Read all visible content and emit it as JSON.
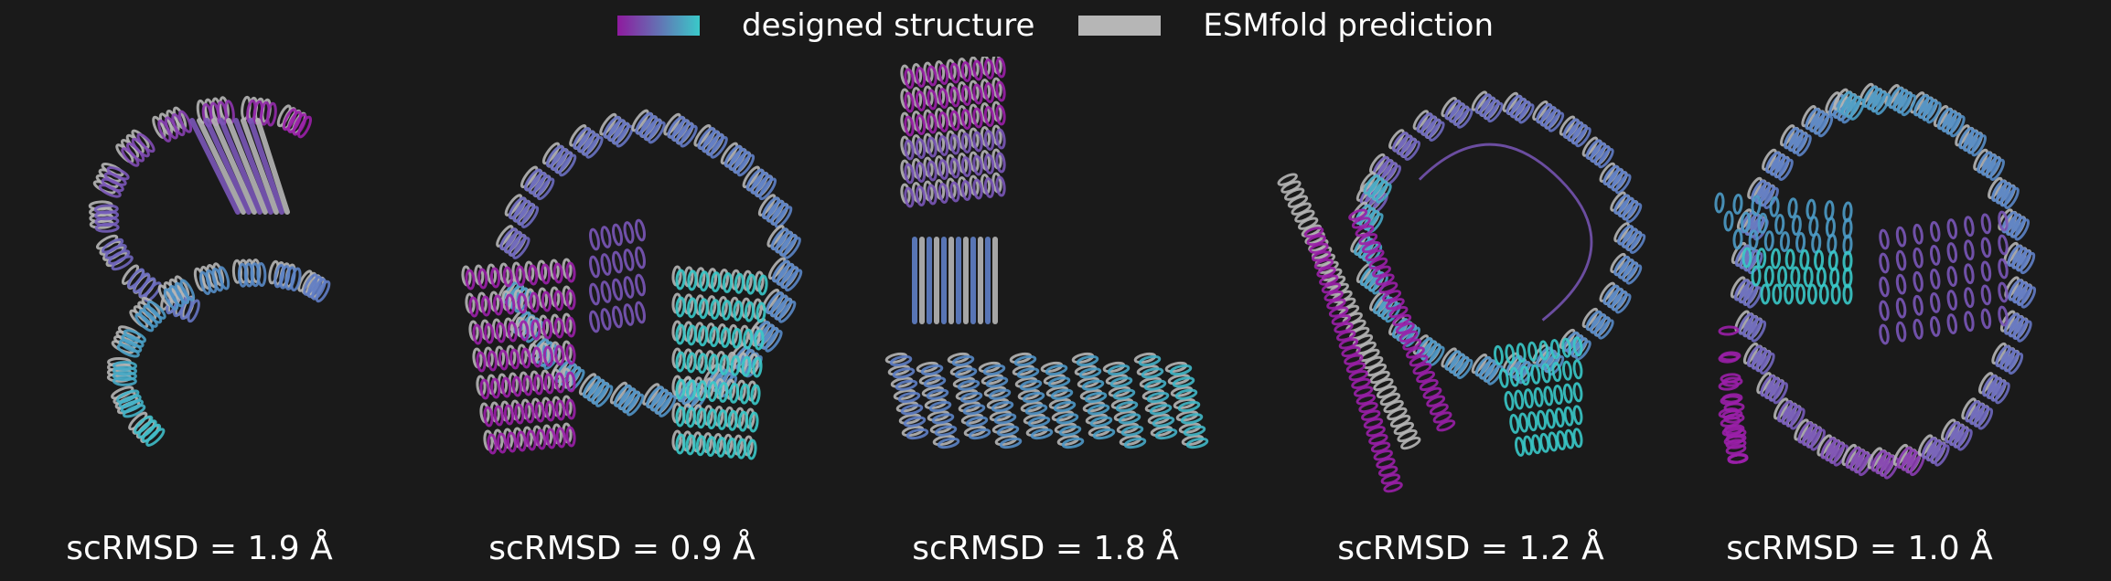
{
  "legend": {
    "designed_label": "designed structure",
    "designed_gradient": [
      "#8e1a9e",
      "#3ac9c9"
    ],
    "esmfold_label": "ESMfold prediction",
    "esmfold_color": "#b6b6b6"
  },
  "panels": [
    {
      "score": "scRMSD = 1.9 Å"
    },
    {
      "score": "scRMSD = 0.9 Å"
    },
    {
      "score": "scRMSD = 1.8 Å"
    },
    {
      "score": "scRMSD = 1.2 Å"
    },
    {
      "score": "scRMSD = 1.0 Å"
    }
  ],
  "colors": {
    "background": "#1a1a1a",
    "magenta": "#9a1fa8",
    "violet": "#7a57b8",
    "blue": "#5f7fc6",
    "sky": "#4c9bc6",
    "cyan": "#3ac9c9",
    "gray": "#b6b6b6"
  }
}
